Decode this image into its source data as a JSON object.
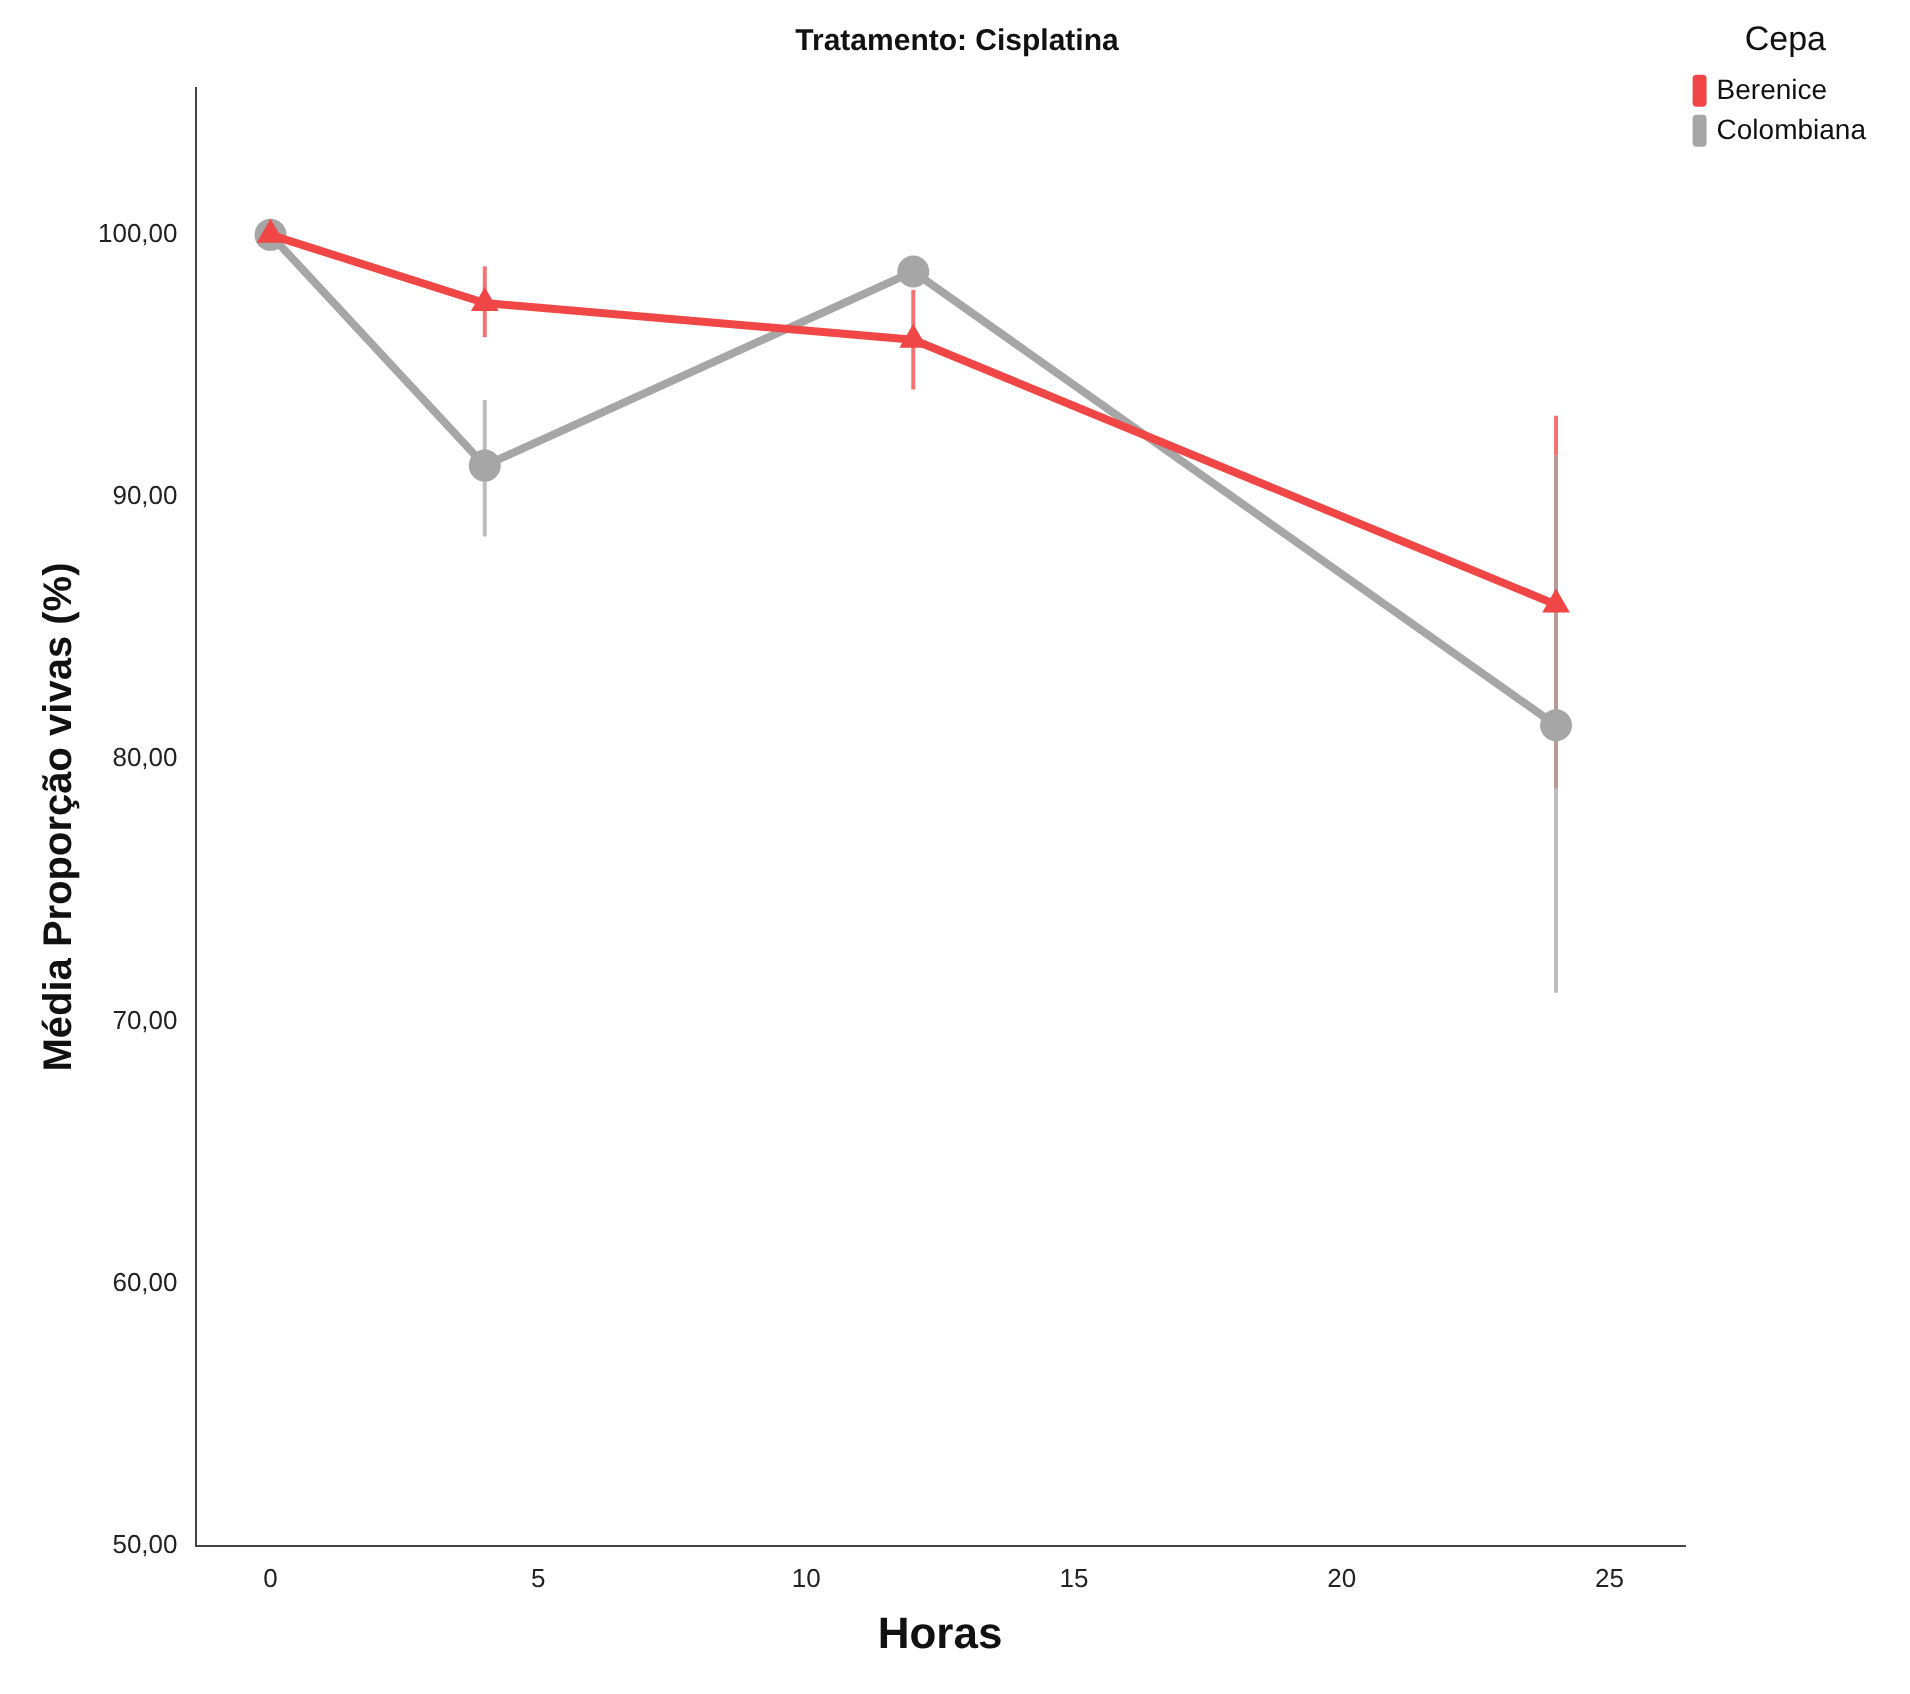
{
  "chart_data": {
    "type": "line",
    "title": "Tratamento: Cisplatina",
    "xlabel": "Horas",
    "ylabel": "Média Proporção vivas (%)",
    "legend_title": "Cepa",
    "legend": "top right",
    "grid": false,
    "xlim": [
      -1.4,
      26.4
    ],
    "xticks": [
      0,
      5,
      10,
      15,
      20,
      25
    ],
    "ylim": [
      50,
      105.6
    ],
    "yticks": [
      {
        "value": 50,
        "label": "50,00"
      },
      {
        "value": 60,
        "label": "60,00"
      },
      {
        "value": 70,
        "label": "70,00"
      },
      {
        "value": 80,
        "label": "80,00"
      },
      {
        "value": 90,
        "label": "90,00"
      },
      {
        "value": 100,
        "label": "100,00"
      }
    ],
    "x": [
      0,
      4,
      12,
      24
    ],
    "series": [
      {
        "name": "Berenice",
        "color": "#f04646",
        "marker": "triangle",
        "values": [
          100,
          97.4,
          96.0,
          85.9
        ],
        "errors": [
          null,
          [
            96.1,
            98.8
          ],
          [
            94.1,
            97.9
          ],
          [
            78.9,
            93.1
          ]
        ]
      },
      {
        "name": "Colombiana",
        "color": "#a6a6a6",
        "marker": "circle",
        "values": [
          100,
          91.2,
          98.6,
          81.3
        ],
        "errors": [
          null,
          [
            88.5,
            93.7
          ],
          null,
          [
            71.1,
            91.6
          ]
        ]
      }
    ]
  }
}
